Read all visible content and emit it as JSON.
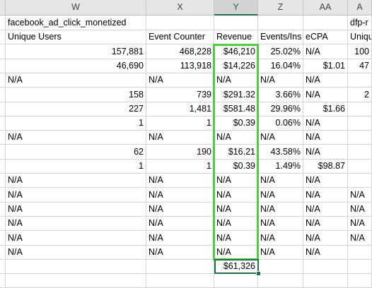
{
  "columns": [
    {
      "id": "prev",
      "label": "",
      "w": 8
    },
    {
      "id": "W",
      "label": "W",
      "w": 199
    },
    {
      "id": "X",
      "label": "X",
      "w": 96
    },
    {
      "id": "Y",
      "label": "Y",
      "w": 62
    },
    {
      "id": "Z",
      "label": "Z",
      "w": 64
    },
    {
      "id": "AA",
      "label": "AA",
      "w": 63
    },
    {
      "id": "AB",
      "label": "A",
      "w": 34
    }
  ],
  "active_column": "Y",
  "rows": [
    {
      "cells": [
        "",
        "facebook_ad_click_monetized",
        "",
        "",
        "",
        "",
        "dfp-r"
      ]
    },
    {
      "cells": [
        "",
        "Unique Users",
        "Event Counter",
        "Revenue",
        "Events/Ins",
        "eCPA",
        "Uniqu"
      ]
    },
    {
      "cells": [
        "",
        "157,881",
        "468,228",
        "$46,210",
        "25.02%",
        "N/A",
        "100"
      ]
    },
    {
      "cells": [
        "",
        "46,690",
        "113,918",
        "$14,226",
        "16.04%",
        "$1.01",
        "47"
      ]
    },
    {
      "cells": [
        "",
        "N/A",
        "N/A",
        "N/A",
        "N/A",
        "N/A",
        ""
      ]
    },
    {
      "cells": [
        "",
        "158",
        "739",
        "$291.32",
        "3.66%",
        "N/A",
        "2"
      ]
    },
    {
      "cells": [
        "",
        "227",
        "1,481",
        "$581.48",
        "29.96%",
        "$1.66",
        ""
      ]
    },
    {
      "cells": [
        "",
        "1",
        "1",
        "$0.39",
        "0.06%",
        "N/A",
        ""
      ]
    },
    {
      "cells": [
        "",
        "N/A",
        "N/A",
        "N/A",
        "N/A",
        "N/A",
        ""
      ]
    },
    {
      "cells": [
        "",
        "62",
        "190",
        "$16.21",
        "43.58%",
        "N/A",
        ""
      ]
    },
    {
      "cells": [
        "",
        "1",
        "1",
        "$0.39",
        "1.49%",
        "$98.87",
        ""
      ]
    },
    {
      "cells": [
        "",
        "N/A",
        "N/A",
        "N/A",
        "N/A",
        "N/A",
        ""
      ]
    },
    {
      "cells": [
        "",
        "N/A",
        "N/A",
        "N/A",
        "N/A",
        "N/A",
        "N/A"
      ]
    },
    {
      "cells": [
        "",
        "N/A",
        "N/A",
        "N/A",
        "N/A",
        "N/A",
        "N/A"
      ]
    },
    {
      "cells": [
        "",
        "N/A",
        "N/A",
        "N/A",
        "N/A",
        "N/A",
        "N/A"
      ]
    },
    {
      "cells": [
        "",
        "N/A",
        "N/A",
        "N/A",
        "N/A",
        "N/A",
        "N/A"
      ]
    },
    {
      "cells": [
        "",
        "N/A",
        "N/A",
        "N/A",
        "N/A",
        "N/A",
        ""
      ]
    },
    {
      "cells": [
        "",
        "",
        "",
        "$61,326",
        "",
        "",
        ""
      ]
    },
    {
      "cells": [
        "",
        "",
        "",
        "",
        "",
        "",
        ""
      ]
    }
  ],
  "selection_color": "#4ccf3a",
  "active_cell_color": "#217346"
}
